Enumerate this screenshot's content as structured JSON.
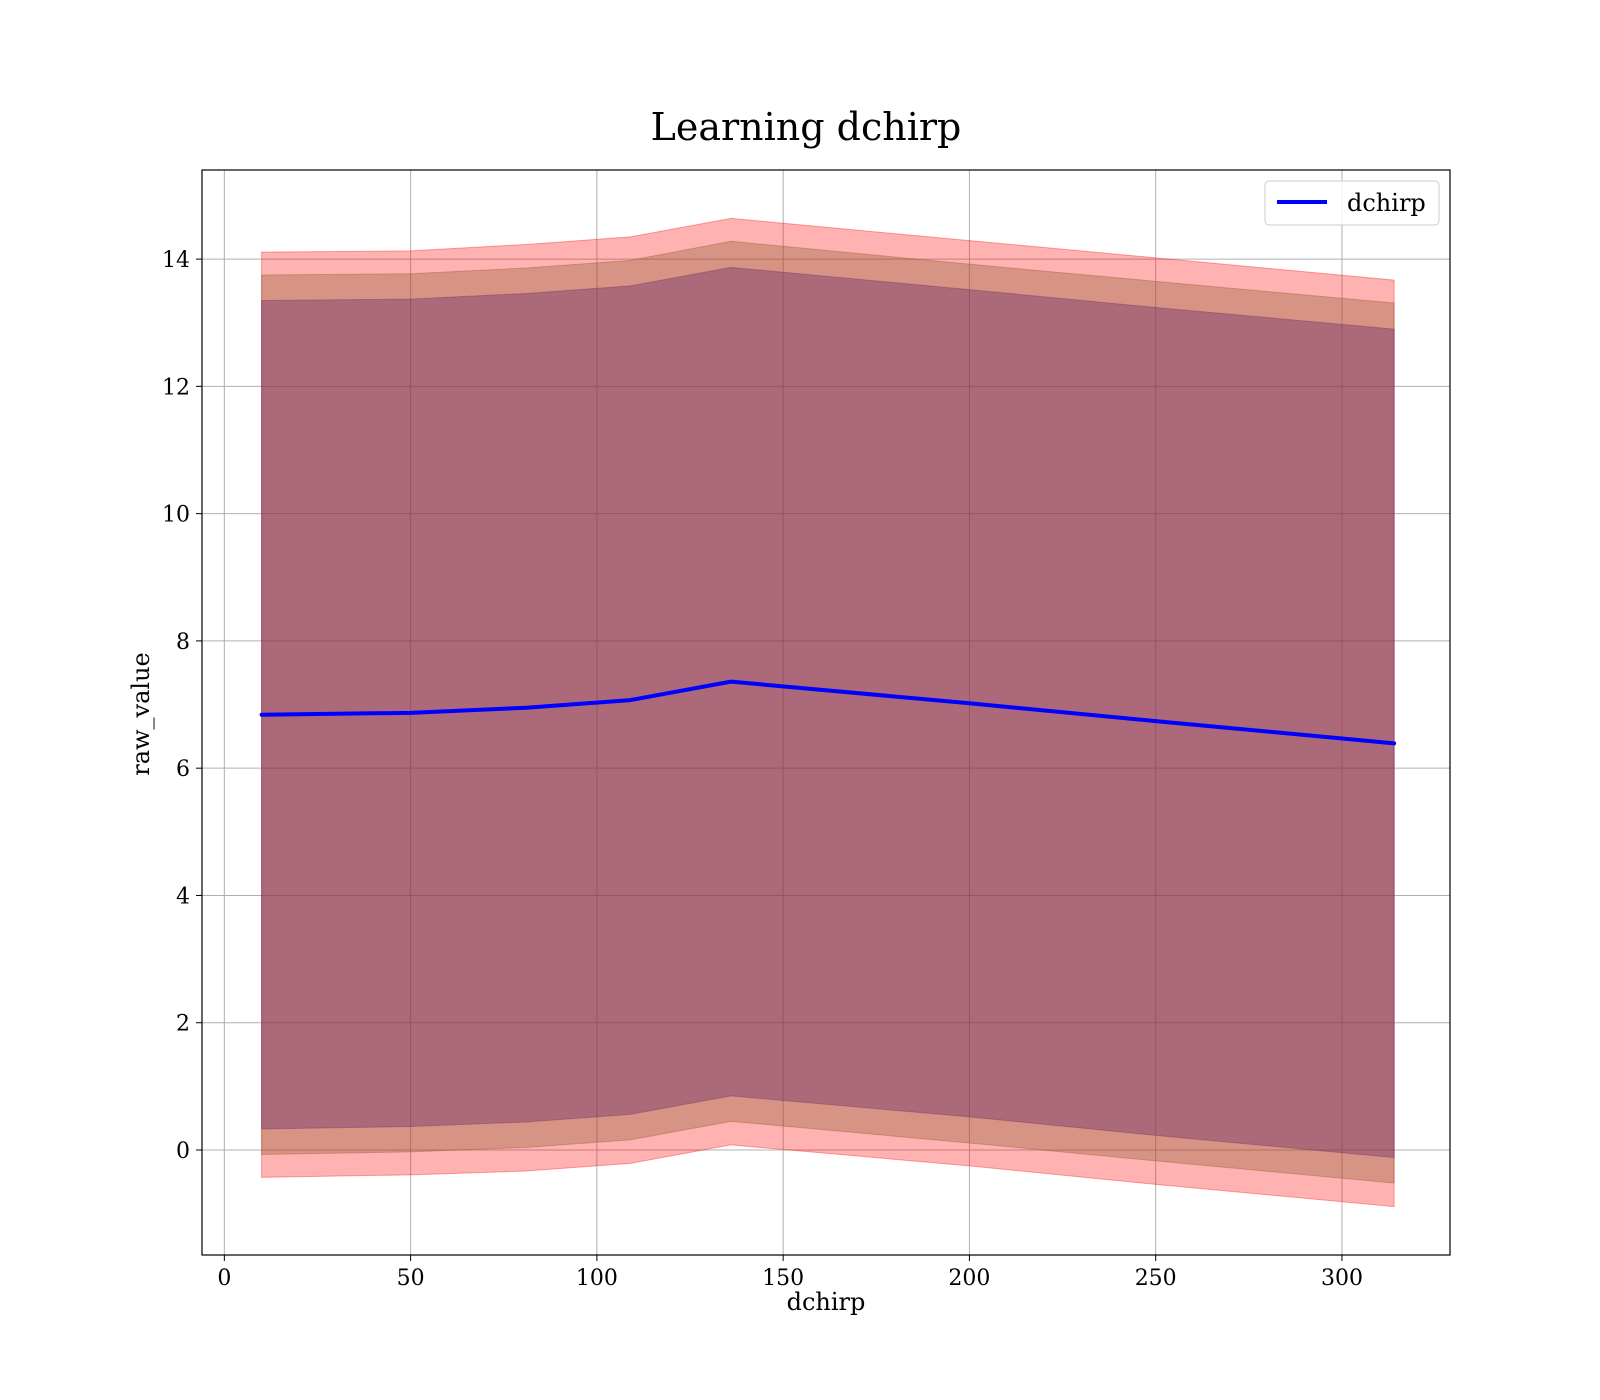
{
  "chart_data": {
    "type": "area",
    "title": "Learning dchirp",
    "xlabel": "dchirp",
    "ylabel": "raw_value",
    "xlim": [
      -6,
      329
    ],
    "ylim": [
      -1.65,
      15.4
    ],
    "xticks": [
      0,
      50,
      100,
      150,
      200,
      250,
      300
    ],
    "yticks": [
      0,
      2,
      4,
      6,
      8,
      10,
      12,
      14
    ],
    "grid": true,
    "legend_position": "top-right",
    "x": [
      10,
      50,
      81,
      109,
      136,
      200,
      250,
      314
    ],
    "series": [
      {
        "name": "dchirp",
        "type": "line",
        "color": "#0000ff",
        "values": [
          6.84,
          6.87,
          6.95,
          7.07,
          7.36,
          7.02,
          6.74,
          6.39
        ]
      }
    ],
    "bands": [
      {
        "color": "#ff0000",
        "opacity": 0.3,
        "upper": [
          14.11,
          14.13,
          14.23,
          14.35,
          14.64,
          14.29,
          14.02,
          13.67
        ],
        "lower": [
          -0.43,
          -0.39,
          -0.33,
          -0.21,
          0.08,
          -0.25,
          -0.54,
          -0.89
        ]
      },
      {
        "color": "#8b5a2b",
        "opacity": 0.35,
        "upper": [
          13.75,
          13.77,
          13.86,
          13.98,
          14.28,
          13.92,
          13.65,
          13.31
        ],
        "lower": [
          -0.07,
          -0.03,
          0.04,
          0.16,
          0.45,
          0.11,
          -0.17,
          -0.52
        ]
      },
      {
        "color": "#6b2a6b",
        "opacity": 0.4,
        "upper": [
          13.35,
          13.37,
          13.46,
          13.58,
          13.87,
          13.52,
          13.24,
          12.9
        ],
        "lower": [
          0.33,
          0.37,
          0.44,
          0.56,
          0.85,
          0.52,
          0.23,
          -0.12
        ]
      }
    ]
  }
}
